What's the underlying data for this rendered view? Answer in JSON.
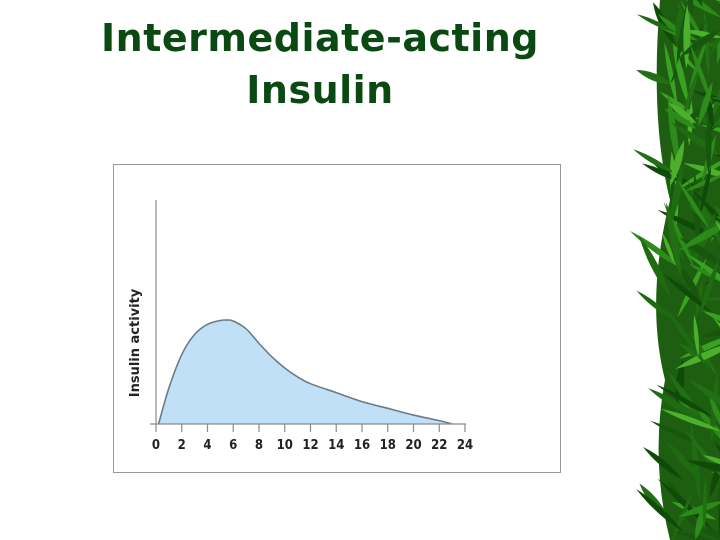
{
  "slide": {
    "title_line1": "Intermediate-acting",
    "title_line2": "Insulin",
    "title_color": "#0a4a12",
    "decoration": "bamboo-leaves"
  },
  "chart_data": {
    "type": "area",
    "title": "Intermediate-acting Insulin",
    "xlabel": "",
    "ylabel": "Insulin activity",
    "x_ticks": [
      0,
      2,
      4,
      6,
      8,
      10,
      12,
      14,
      16,
      18,
      20,
      22,
      24
    ],
    "xlim": [
      0,
      24
    ],
    "ylim": [
      0,
      100
    ],
    "y_ticks_shown": false,
    "grid": false,
    "legend": null,
    "fill_color": "#bfe0f7",
    "line_color": "#6e7b85",
    "series": [
      {
        "name": "Insulin activity",
        "x": [
          0.2,
          1,
          2,
          3,
          4,
          5,
          5.5,
          6,
          7,
          8,
          9,
          10,
          11,
          12,
          14,
          16,
          18,
          20,
          22,
          23
        ],
        "y": [
          0,
          16,
          31,
          40,
          44.5,
          46.2,
          46.4,
          46,
          42.5,
          36,
          30,
          25,
          21,
          18,
          14,
          10,
          7,
          4,
          1.5,
          0
        ]
      }
    ],
    "annotations": []
  }
}
